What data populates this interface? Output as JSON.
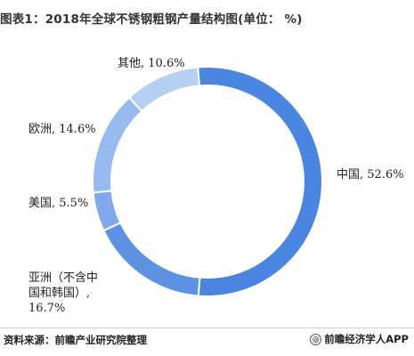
{
  "title": "图表1：2018年全球不锈钢粗钢产量结构图(单位：   %)",
  "source": "资料来源：前瞻产业研究院整理",
  "brand": "@前瞻经济学人APP",
  "chart_data": {
    "type": "pie",
    "donut": true,
    "start_angle_deg": -4.8,
    "direction": "clockwise",
    "slices": [
      {
        "name": "中国",
        "value": 52.6,
        "color": "#4a86e0",
        "label_lines": [
          "中国, 52.6%"
        ]
      },
      {
        "name": "亚洲（不含中国和韩国）",
        "value": 16.7,
        "color": "#5d92e3",
        "label_lines": [
          "亚洲（不含中",
          "国和韩国）,",
          "16.7%"
        ]
      },
      {
        "name": "美国",
        "value": 5.5,
        "color": "#7fa9ea",
        "label_lines": [
          "美国, 5.5%"
        ]
      },
      {
        "name": "欧洲",
        "value": 14.6,
        "color": "#97bbef",
        "label_lines": [
          "欧洲, 14.6%"
        ]
      },
      {
        "name": "其他",
        "value": 10.6,
        "color": "#b6d0f4",
        "label_lines": [
          "其他, 10.6%"
        ]
      }
    ]
  }
}
